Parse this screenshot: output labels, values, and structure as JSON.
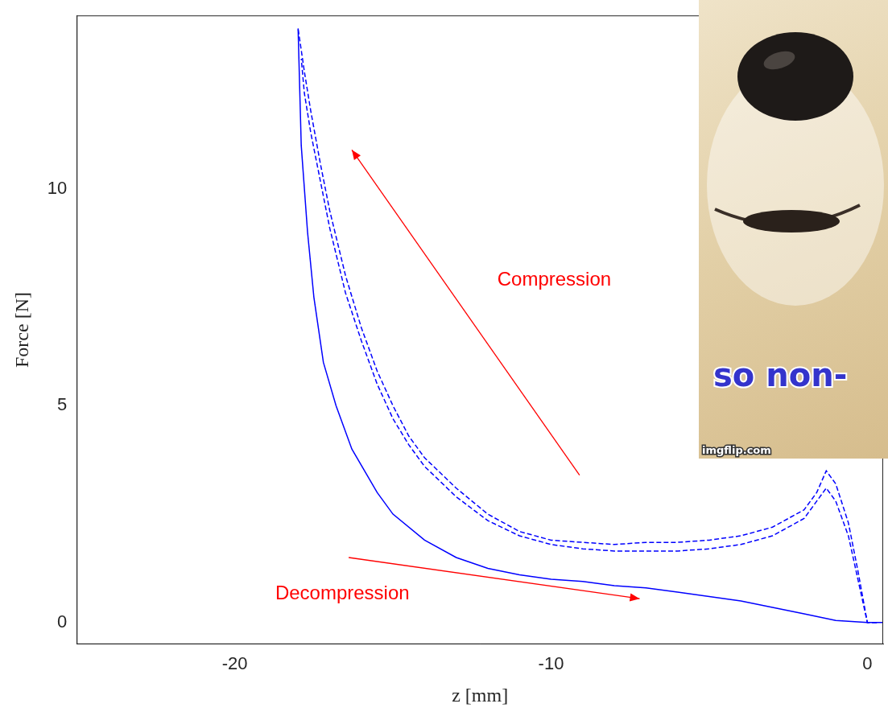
{
  "chart_data": {
    "type": "scatter",
    "x_label": "z [mm]",
    "y_label": "Force [N]",
    "xlim": [
      -25,
      0.5
    ],
    "xticks": [
      -20,
      -10,
      0
    ],
    "ylim": [
      -0.5,
      14
    ],
    "yticks": [
      0,
      5,
      10
    ],
    "grid": false,
    "series": [
      {
        "color": "#0000ff",
        "line_style": "dashed",
        "x": [
          0.3,
          0,
          -0.3,
          -0.6,
          -1.0,
          -1.3,
          -1.6,
          -2,
          -3,
          -4,
          -5,
          -6,
          -7,
          -8,
          -9,
          -10,
          -11,
          -12,
          -13,
          -14,
          -14.5,
          -15,
          -15.5,
          -16,
          -16.5,
          -17,
          -17.3,
          -17.6,
          -17.8,
          -18
        ],
        "values": [
          0,
          0,
          1.2,
          2.3,
          3.2,
          3.5,
          3.0,
          2.6,
          2.2,
          2.0,
          1.9,
          1.85,
          1.85,
          1.8,
          1.85,
          1.9,
          2.1,
          2.5,
          3.1,
          3.8,
          4.3,
          5.0,
          5.8,
          6.8,
          8.0,
          9.5,
          10.6,
          11.8,
          12.7,
          13.7
        ]
      },
      {
        "color": "#0000ff",
        "line_style": "dashed",
        "x": [
          0.3,
          0,
          -0.3,
          -0.6,
          -1.0,
          -1.3,
          -1.6,
          -2,
          -3,
          -4,
          -5,
          -6,
          -7,
          -8,
          -9,
          -10,
          -11,
          -12,
          -13,
          -14,
          -14.5,
          -15,
          -15.5,
          -16,
          -16.5,
          -17,
          -17.3,
          -17.6,
          -17.8,
          -17.9
        ],
        "values": [
          0,
          0,
          1.0,
          2.0,
          2.8,
          3.1,
          2.8,
          2.4,
          2.0,
          1.8,
          1.7,
          1.65,
          1.65,
          1.65,
          1.7,
          1.8,
          2.0,
          2.35,
          2.9,
          3.6,
          4.1,
          4.7,
          5.5,
          6.5,
          7.6,
          9.1,
          10.2,
          11.3,
          12.2,
          13.0
        ]
      },
      {
        "color": "#0000ff",
        "line_style": "solid",
        "x": [
          -18,
          -17.9,
          -17.7,
          -17.5,
          -17.2,
          -16.8,
          -16.3,
          -15.5,
          -15,
          -14,
          -13,
          -12,
          -11,
          -10,
          -9,
          -8,
          -7,
          -6,
          -5,
          -4,
          -3,
          -2,
          -1,
          0,
          0.5
        ],
        "values": [
          13.7,
          11,
          9,
          7.5,
          6,
          5,
          4,
          3,
          2.5,
          1.9,
          1.5,
          1.25,
          1.1,
          1.0,
          0.95,
          0.85,
          0.8,
          0.7,
          0.6,
          0.5,
          0.35,
          0.2,
          0.05,
          0,
          0
        ]
      }
    ],
    "annotations": [
      {
        "text": "Compression",
        "x": -9.9,
        "y": 7.9,
        "color": "#ff0000",
        "arrow_from": [
          -9.1,
          3.4
        ],
        "arrow_to": [
          -16.3,
          10.9
        ]
      },
      {
        "text": "Decompression",
        "x": -16.6,
        "y": 0.65,
        "color": "#ff0000",
        "arrow_from": [
          -16.4,
          1.5
        ],
        "arrow_to": [
          -7.2,
          0.55
        ]
      }
    ],
    "inset_texts": [
      "so non-",
      "imgflip.com"
    ]
  }
}
